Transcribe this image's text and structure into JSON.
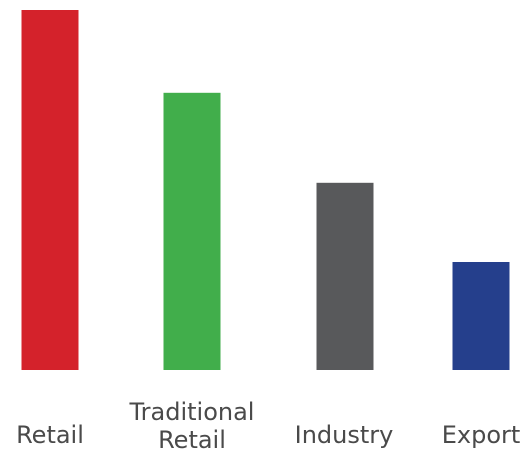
{
  "chart_data": {
    "type": "bar",
    "categories": [
      "Retail",
      "Traditional Retail",
      "Industry",
      "Export"
    ],
    "values": [
      100,
      77,
      52,
      30
    ],
    "ylim": [
      0,
      100
    ],
    "grid": false,
    "legend": "none",
    "title": "",
    "xlabel": "",
    "ylabel": "",
    "colors": [
      "#d4222b",
      "#41ae4b",
      "#58595b",
      "#253f8c"
    ],
    "label_color": "#4a4a4a"
  }
}
